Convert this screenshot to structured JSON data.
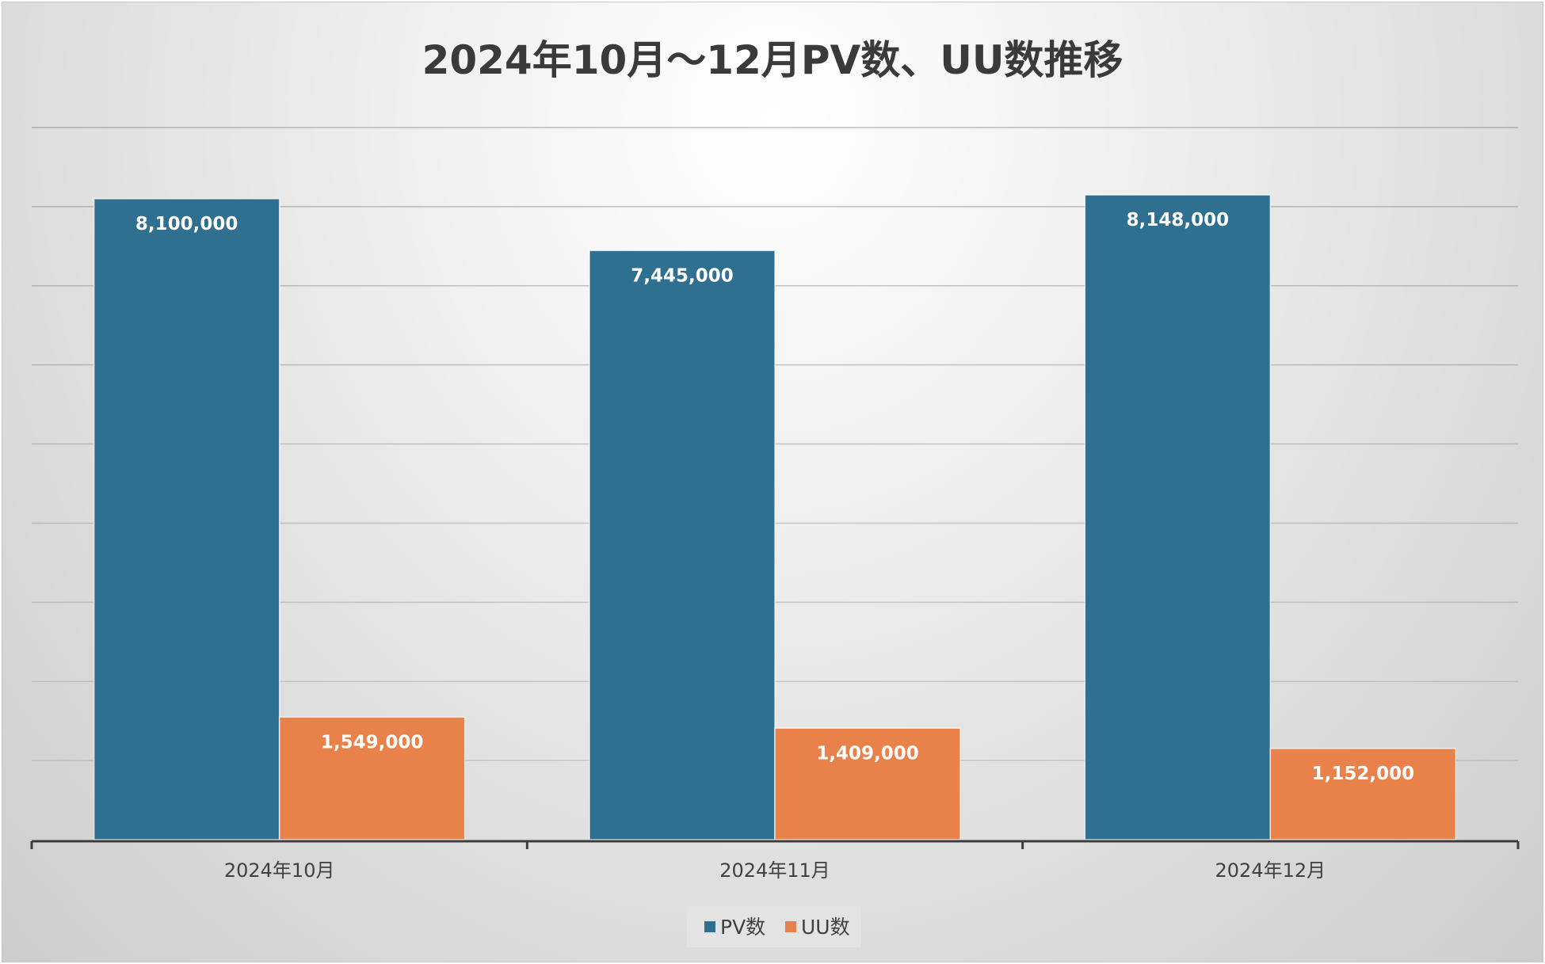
{
  "chart_data": {
    "type": "bar",
    "title": "2024年10月～12月PV数、UU数推移",
    "categories": [
      "2024年10月",
      "2024年11月",
      "2024年12月"
    ],
    "series": [
      {
        "name": "PV数",
        "values": [
          8100000,
          7445000,
          8148000
        ],
        "labels": [
          "8,100,000",
          "7,445,000",
          "8,148,000"
        ],
        "color": "#2f6f8f"
      },
      {
        "name": "UU数",
        "values": [
          1549000,
          1409000,
          1152000
        ],
        "labels": [
          "1,549,000",
          "1,409,000",
          "1,152,000"
        ],
        "color": "#e8824a"
      }
    ],
    "ylim": [
      0,
      9000000
    ],
    "ytick_step": 1000000,
    "grid": true,
    "show_y_tick_labels": false,
    "legend_position": "bottom",
    "xlabel": "",
    "ylabel": ""
  }
}
